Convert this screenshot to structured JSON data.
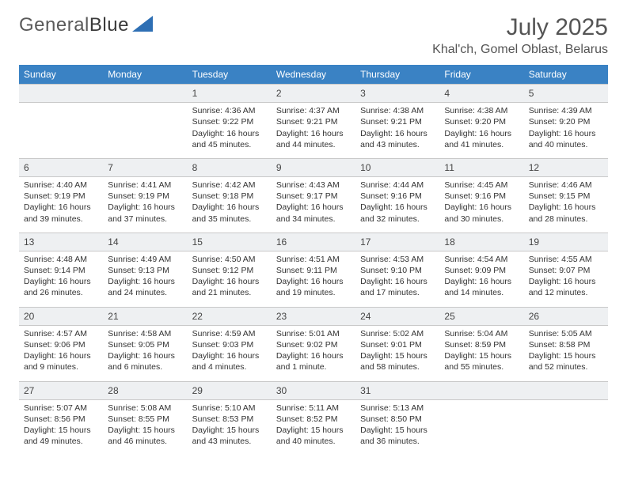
{
  "brand": {
    "name_a": "General",
    "name_b": "Blue"
  },
  "title": "July 2025",
  "location": "Khal'ch, Gomel Oblast, Belarus",
  "colors": {
    "header_bg": "#3a82c4",
    "header_fg": "#ffffff",
    "daynum_bg": "#eef0f2",
    "rule": "#c9c9c9",
    "text": "#333333",
    "title": "#555555"
  },
  "weekdays": [
    "Sunday",
    "Monday",
    "Tuesday",
    "Wednesday",
    "Thursday",
    "Friday",
    "Saturday"
  ],
  "weeks": [
    [
      null,
      null,
      {
        "n": "1",
        "sr": "4:36 AM",
        "ss": "9:22 PM",
        "dl": "16 hours and 45 minutes."
      },
      {
        "n": "2",
        "sr": "4:37 AM",
        "ss": "9:21 PM",
        "dl": "16 hours and 44 minutes."
      },
      {
        "n": "3",
        "sr": "4:38 AM",
        "ss": "9:21 PM",
        "dl": "16 hours and 43 minutes."
      },
      {
        "n": "4",
        "sr": "4:38 AM",
        "ss": "9:20 PM",
        "dl": "16 hours and 41 minutes."
      },
      {
        "n": "5",
        "sr": "4:39 AM",
        "ss": "9:20 PM",
        "dl": "16 hours and 40 minutes."
      }
    ],
    [
      {
        "n": "6",
        "sr": "4:40 AM",
        "ss": "9:19 PM",
        "dl": "16 hours and 39 minutes."
      },
      {
        "n": "7",
        "sr": "4:41 AM",
        "ss": "9:19 PM",
        "dl": "16 hours and 37 minutes."
      },
      {
        "n": "8",
        "sr": "4:42 AM",
        "ss": "9:18 PM",
        "dl": "16 hours and 35 minutes."
      },
      {
        "n": "9",
        "sr": "4:43 AM",
        "ss": "9:17 PM",
        "dl": "16 hours and 34 minutes."
      },
      {
        "n": "10",
        "sr": "4:44 AM",
        "ss": "9:16 PM",
        "dl": "16 hours and 32 minutes."
      },
      {
        "n": "11",
        "sr": "4:45 AM",
        "ss": "9:16 PM",
        "dl": "16 hours and 30 minutes."
      },
      {
        "n": "12",
        "sr": "4:46 AM",
        "ss": "9:15 PM",
        "dl": "16 hours and 28 minutes."
      }
    ],
    [
      {
        "n": "13",
        "sr": "4:48 AM",
        "ss": "9:14 PM",
        "dl": "16 hours and 26 minutes."
      },
      {
        "n": "14",
        "sr": "4:49 AM",
        "ss": "9:13 PM",
        "dl": "16 hours and 24 minutes."
      },
      {
        "n": "15",
        "sr": "4:50 AM",
        "ss": "9:12 PM",
        "dl": "16 hours and 21 minutes."
      },
      {
        "n": "16",
        "sr": "4:51 AM",
        "ss": "9:11 PM",
        "dl": "16 hours and 19 minutes."
      },
      {
        "n": "17",
        "sr": "4:53 AM",
        "ss": "9:10 PM",
        "dl": "16 hours and 17 minutes."
      },
      {
        "n": "18",
        "sr": "4:54 AM",
        "ss": "9:09 PM",
        "dl": "16 hours and 14 minutes."
      },
      {
        "n": "19",
        "sr": "4:55 AM",
        "ss": "9:07 PM",
        "dl": "16 hours and 12 minutes."
      }
    ],
    [
      {
        "n": "20",
        "sr": "4:57 AM",
        "ss": "9:06 PM",
        "dl": "16 hours and 9 minutes."
      },
      {
        "n": "21",
        "sr": "4:58 AM",
        "ss": "9:05 PM",
        "dl": "16 hours and 6 minutes."
      },
      {
        "n": "22",
        "sr": "4:59 AM",
        "ss": "9:03 PM",
        "dl": "16 hours and 4 minutes."
      },
      {
        "n": "23",
        "sr": "5:01 AM",
        "ss": "9:02 PM",
        "dl": "16 hours and 1 minute."
      },
      {
        "n": "24",
        "sr": "5:02 AM",
        "ss": "9:01 PM",
        "dl": "15 hours and 58 minutes."
      },
      {
        "n": "25",
        "sr": "5:04 AM",
        "ss": "8:59 PM",
        "dl": "15 hours and 55 minutes."
      },
      {
        "n": "26",
        "sr": "5:05 AM",
        "ss": "8:58 PM",
        "dl": "15 hours and 52 minutes."
      }
    ],
    [
      {
        "n": "27",
        "sr": "5:07 AM",
        "ss": "8:56 PM",
        "dl": "15 hours and 49 minutes."
      },
      {
        "n": "28",
        "sr": "5:08 AM",
        "ss": "8:55 PM",
        "dl": "15 hours and 46 minutes."
      },
      {
        "n": "29",
        "sr": "5:10 AM",
        "ss": "8:53 PM",
        "dl": "15 hours and 43 minutes."
      },
      {
        "n": "30",
        "sr": "5:11 AM",
        "ss": "8:52 PM",
        "dl": "15 hours and 40 minutes."
      },
      {
        "n": "31",
        "sr": "5:13 AM",
        "ss": "8:50 PM",
        "dl": "15 hours and 36 minutes."
      },
      null,
      null
    ]
  ],
  "labels": {
    "sunrise": "Sunrise: ",
    "sunset": "Sunset: ",
    "daylight": "Daylight: "
  }
}
